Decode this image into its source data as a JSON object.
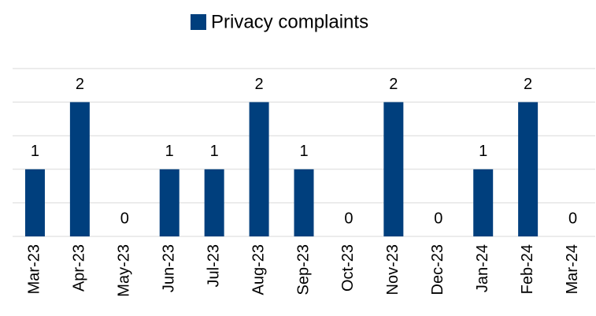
{
  "chart_data": {
    "type": "bar",
    "legend_label": "Privacy complaints",
    "legend_position": "top",
    "categories": [
      "Mar-23",
      "Apr-23",
      "May-23",
      "Jun-23",
      "Jul-23",
      "Aug-23",
      "Sep-23",
      "Oct-23",
      "Nov-23",
      "Dec-23",
      "Jan-24",
      "Feb-24",
      "Mar-24"
    ],
    "values": [
      1,
      2,
      0,
      1,
      1,
      2,
      1,
      0,
      2,
      0,
      1,
      2,
      0
    ],
    "color": "#003f7d",
    "ylim": [
      0,
      2.5
    ],
    "yticks": [
      0,
      0.5,
      1,
      1.5,
      2,
      2.5
    ],
    "grid": true
  }
}
